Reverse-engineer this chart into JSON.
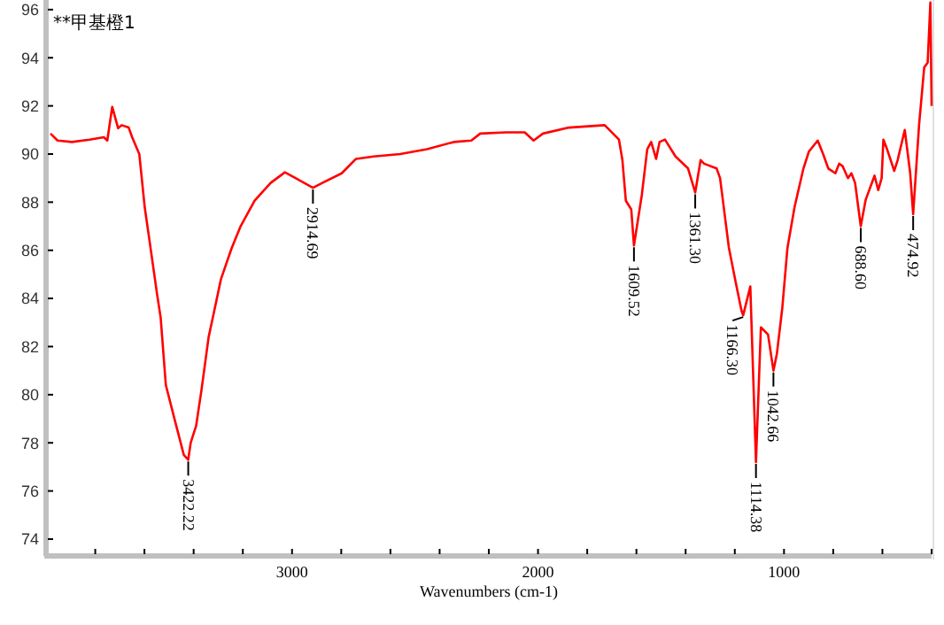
{
  "chart_data": {
    "type": "line",
    "title": "**甲基橙1",
    "xlabel": "Wavenumbers (cm-1)",
    "xlim": [
      4000,
      400
    ],
    "ylim": [
      73.3,
      96.4
    ],
    "xticks": [
      {
        "value": 3800,
        "label": null
      },
      {
        "value": 3600,
        "label": null
      },
      {
        "value": 3400,
        "label": null
      },
      {
        "value": 3200,
        "label": null
      },
      3000,
      {
        "value": 2800,
        "label": null
      },
      {
        "value": 2600,
        "label": null
      },
      {
        "value": 2400,
        "label": null
      },
      {
        "value": 2200,
        "label": null
      },
      2000,
      {
        "value": 1800,
        "label": null
      },
      {
        "value": 1600,
        "label": null
      },
      {
        "value": 1400,
        "label": null
      },
      {
        "value": 1200,
        "label": null
      },
      1000,
      {
        "value": 800,
        "label": null
      },
      {
        "value": 600,
        "label": null
      },
      {
        "value": 400,
        "label": null
      }
    ],
    "yticks": [
      74,
      76,
      78,
      80,
      82,
      84,
      86,
      88,
      90,
      92,
      94,
      96
    ],
    "marker": "none",
    "line_style": "solid",
    "series": [
      {
        "color": "#ff0000",
        "x": [
          3982,
          3953,
          3895,
          3823,
          3765,
          3751,
          3731,
          3707,
          3693,
          3664,
          3650,
          3621,
          3599,
          3578,
          3549,
          3534,
          3513,
          3477,
          3440,
          3422,
          3412,
          3390,
          3368,
          3339,
          3318,
          3289,
          3245,
          3209,
          3152,
          3087,
          3029,
          2986,
          2915,
          2877,
          2798,
          2740,
          2668,
          2560,
          2451,
          2343,
          2271,
          2235,
          2130,
          2054,
          2018,
          1980,
          1874,
          1729,
          1671,
          1657,
          1643,
          1621,
          1610,
          1578,
          1556,
          1540,
          1520,
          1506,
          1484,
          1441,
          1390,
          1361,
          1339,
          1325,
          1274,
          1260,
          1224,
          1195,
          1173,
          1166,
          1137,
          1114,
          1094,
          1065,
          1043,
          1029,
          1007,
          986,
          957,
          921,
          899,
          863,
          841,
          820,
          791,
          776,
          762,
          740,
          726,
          711,
          697,
          688,
          668,
          632,
          617,
          603,
          596,
          581,
          552,
          538,
          509,
          487,
          475,
          451,
          430,
          416,
          405,
          400
        ],
        "values": [
          90.85,
          90.56,
          90.5,
          90.6,
          90.7,
          90.56,
          91.96,
          91.07,
          91.2,
          91.1,
          90.7,
          90.0,
          87.8,
          86.3,
          84.2,
          83.2,
          80.4,
          78.96,
          77.5,
          77.3,
          78.0,
          78.7,
          80.2,
          82.4,
          83.4,
          84.8,
          86.1,
          87.0,
          88.06,
          88.8,
          89.24,
          89.0,
          88.6,
          88.8,
          89.2,
          89.8,
          89.9,
          90.0,
          90.2,
          90.5,
          90.56,
          90.85,
          90.9,
          90.9,
          90.56,
          90.85,
          91.1,
          91.2,
          90.6,
          89.75,
          88.06,
          87.7,
          86.2,
          88.3,
          90.2,
          90.5,
          89.8,
          90.5,
          90.6,
          89.9,
          89.4,
          88.4,
          89.75,
          89.6,
          89.4,
          89.0,
          86.1,
          84.6,
          83.5,
          83.3,
          84.5,
          77.2,
          82.8,
          82.5,
          81.0,
          81.7,
          83.6,
          86.1,
          87.8,
          89.4,
          90.1,
          90.56,
          90.0,
          89.4,
          89.2,
          89.6,
          89.5,
          89.0,
          89.2,
          88.8,
          87.7,
          87.0,
          88.1,
          89.1,
          88.5,
          89.0,
          90.6,
          90.2,
          89.3,
          89.75,
          91.0,
          89.2,
          87.5,
          91.2,
          93.6,
          93.8,
          96.3,
          92.0
        ]
      }
    ],
    "annotations": [
      {
        "text": "3422.22",
        "x": 3422,
        "y": 77.3
      },
      {
        "text": "2914.69",
        "x": 2915,
        "y": 88.6
      },
      {
        "text": "1609.52",
        "x": 1610,
        "y": 86.2
      },
      {
        "text": "1361.30",
        "x": 1361,
        "y": 88.4
      },
      {
        "text": "1166.30",
        "x": 1166,
        "y": 83.3
      },
      {
        "text": "1114.38",
        "x": 1114,
        "y": 77.2
      },
      {
        "text": "1042.66",
        "x": 1043,
        "y": 81.0
      },
      {
        "text": "688.60",
        "x": 688,
        "y": 87.0
      },
      {
        "text": "474.92",
        "x": 475,
        "y": 87.5
      }
    ]
  }
}
